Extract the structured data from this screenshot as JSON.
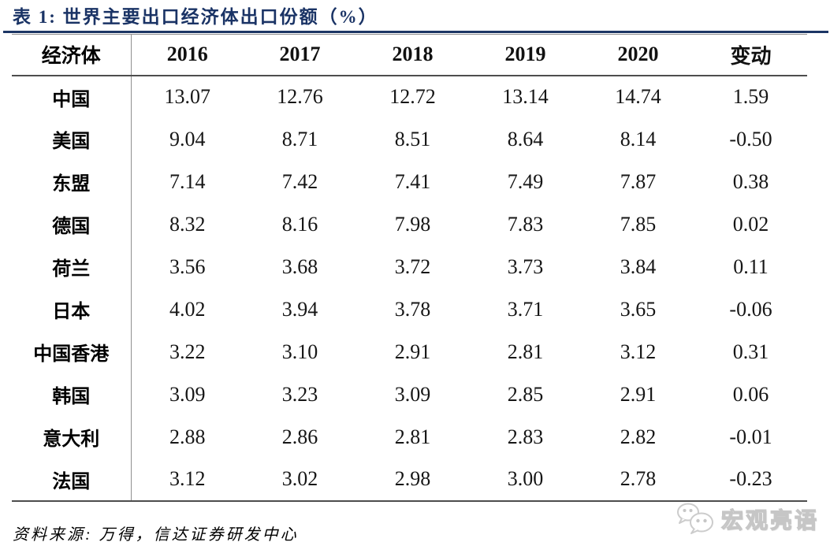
{
  "title": {
    "text": "表 1: 世界主要出口经济体出口份额（%）"
  },
  "table": {
    "columns": [
      "经济体",
      "2016",
      "2017",
      "2018",
      "2019",
      "2020",
      "变动"
    ],
    "rows": [
      {
        "cells": [
          "中国",
          "13.07",
          "12.76",
          "12.72",
          "13.14",
          "14.74",
          "1.59"
        ]
      },
      {
        "cells": [
          "美国",
          "9.04",
          "8.71",
          "8.51",
          "8.64",
          "8.14",
          "-0.50"
        ]
      },
      {
        "cells": [
          "东盟",
          "7.14",
          "7.42",
          "7.41",
          "7.49",
          "7.87",
          "0.38"
        ]
      },
      {
        "cells": [
          "德国",
          "8.32",
          "8.16",
          "7.98",
          "7.83",
          "7.85",
          "0.02"
        ]
      },
      {
        "cells": [
          "荷兰",
          "3.56",
          "3.68",
          "3.72",
          "3.73",
          "3.84",
          "0.11"
        ]
      },
      {
        "cells": [
          "日本",
          "4.02",
          "3.94",
          "3.78",
          "3.71",
          "3.65",
          "-0.06"
        ]
      },
      {
        "cells": [
          "中国香港",
          "3.22",
          "3.10",
          "2.91",
          "2.81",
          "3.12",
          "0.31"
        ]
      },
      {
        "cells": [
          "韩国",
          "3.09",
          "3.23",
          "3.09",
          "2.85",
          "2.91",
          "0.06"
        ]
      },
      {
        "cells": [
          "意大利",
          "2.88",
          "2.86",
          "2.81",
          "2.83",
          "2.82",
          "-0.01"
        ]
      },
      {
        "cells": [
          "法国",
          "3.12",
          "3.02",
          "2.98",
          "3.00",
          "2.78",
          "-0.23"
        ]
      }
    ]
  },
  "source": {
    "text": "资料来源: 万得，信达证券研发中心"
  },
  "watermark": {
    "text": "宏观亮语",
    "icon": "wechat-chat-bubbles-icon",
    "color": "#c6c6c6"
  },
  "colors": {
    "caption_navy": "#1a3365",
    "rule_navy": "#1c3665",
    "border_gray": "#8f8f8f",
    "border_dark": "#4d4d4d",
    "text_black": "#000000",
    "watermark_gray": "#c6c6c6",
    "background": "#ffffff"
  },
  "chart_data": {
    "type": "table",
    "title": "表 1: 世界主要出口经济体出口份额（%）",
    "columns": [
      "经济体",
      "2016",
      "2017",
      "2018",
      "2019",
      "2020",
      "变动"
    ],
    "rows": [
      [
        "中国",
        13.07,
        12.76,
        12.72,
        13.14,
        14.74,
        1.59
      ],
      [
        "美国",
        9.04,
        8.71,
        8.51,
        8.64,
        8.14,
        -0.5
      ],
      [
        "东盟",
        7.14,
        7.42,
        7.41,
        7.49,
        7.87,
        0.38
      ],
      [
        "德国",
        8.32,
        8.16,
        7.98,
        7.83,
        7.85,
        0.02
      ],
      [
        "荷兰",
        3.56,
        3.68,
        3.72,
        3.73,
        3.84,
        0.11
      ],
      [
        "日本",
        4.02,
        3.94,
        3.78,
        3.71,
        3.65,
        -0.06
      ],
      [
        "中国香港",
        3.22,
        3.1,
        2.91,
        2.81,
        3.12,
        0.31
      ],
      [
        "韩国",
        3.09,
        3.23,
        3.09,
        2.85,
        2.91,
        0.06
      ],
      [
        "意大利",
        2.88,
        2.86,
        2.81,
        2.83,
        2.82,
        -0.01
      ],
      [
        "法国",
        3.12,
        3.02,
        2.98,
        3.0,
        2.78,
        -0.23
      ]
    ],
    "source": "资料来源: 万得，信达证券研发中心",
    "unit": "%"
  }
}
